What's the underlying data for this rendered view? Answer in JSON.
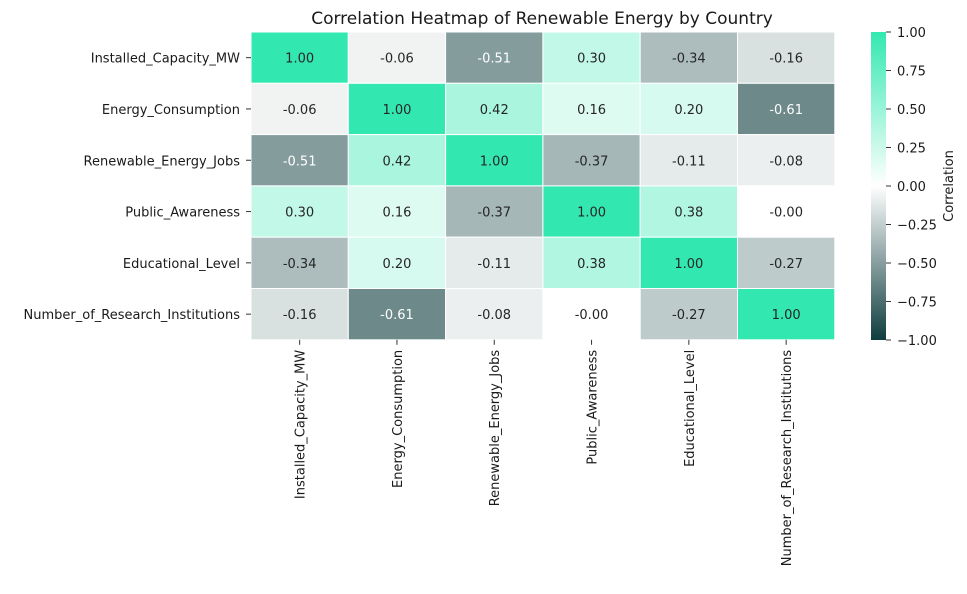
{
  "chart_data": {
    "type": "heatmap",
    "title": "Correlation Heatmap of Renewable Energy by Country",
    "xlabel": "",
    "ylabel": "",
    "rows": [
      "Installed_Capacity_MW",
      "Energy_Consumption",
      "Renewable_Energy_Jobs",
      "Public_Awareness",
      "Educational_Level",
      "Number_of_Research_Institutions"
    ],
    "columns": [
      "Installed_Capacity_MW",
      "Energy_Consumption",
      "Renewable_Energy_Jobs",
      "Public_Awareness",
      "Educational_Level",
      "Number_of_Research_Institutions"
    ],
    "values": [
      [
        1.0,
        -0.06,
        -0.51,
        0.3,
        -0.34,
        -0.16
      ],
      [
        -0.06,
        1.0,
        0.42,
        0.16,
        0.2,
        -0.61
      ],
      [
        -0.51,
        0.42,
        1.0,
        -0.37,
        -0.11,
        -0.08
      ],
      [
        0.3,
        0.16,
        -0.37,
        1.0,
        0.38,
        -0.0
      ],
      [
        -0.34,
        0.2,
        -0.11,
        0.38,
        1.0,
        -0.27
      ],
      [
        -0.16,
        -0.61,
        -0.08,
        -0.0,
        -0.27,
        1.0
      ]
    ],
    "value_labels": [
      [
        "1.00",
        "-0.06",
        "-0.51",
        "0.30",
        "-0.34",
        "-0.16"
      ],
      [
        "-0.06",
        "1.00",
        "0.42",
        "0.16",
        "0.20",
        "-0.61"
      ],
      [
        "-0.51",
        "0.42",
        "1.00",
        "-0.37",
        "-0.11",
        "-0.08"
      ],
      [
        "0.30",
        "0.16",
        "-0.37",
        "1.00",
        "0.38",
        "-0.00"
      ],
      [
        "-0.34",
        "0.20",
        "-0.11",
        "0.38",
        "1.00",
        "-0.27"
      ],
      [
        "-0.16",
        "-0.61",
        "-0.08",
        "-0.00",
        "-0.27",
        "1.00"
      ]
    ],
    "vmin": -1.0,
    "vmax": 1.0,
    "grid": false,
    "colorbar": {
      "label": "Correlation",
      "ticks": [
        1.0,
        0.75,
        0.5,
        0.25,
        0.0,
        -0.25,
        -0.5,
        -0.75,
        -1.0
      ],
      "tick_labels": [
        "1.00",
        "0.75",
        "0.50",
        "0.25",
        "0.00",
        "−0.25",
        "−0.50",
        "−0.75",
        "−1.00"
      ],
      "placement": "right"
    },
    "colors": {
      "negative_end": "#0f3d3e",
      "center": "#ffffff",
      "positive_end": "#33e8b0",
      "text_dark": "#262626",
      "text_light": "#ffffff",
      "cell_border": "#ffffff"
    }
  }
}
